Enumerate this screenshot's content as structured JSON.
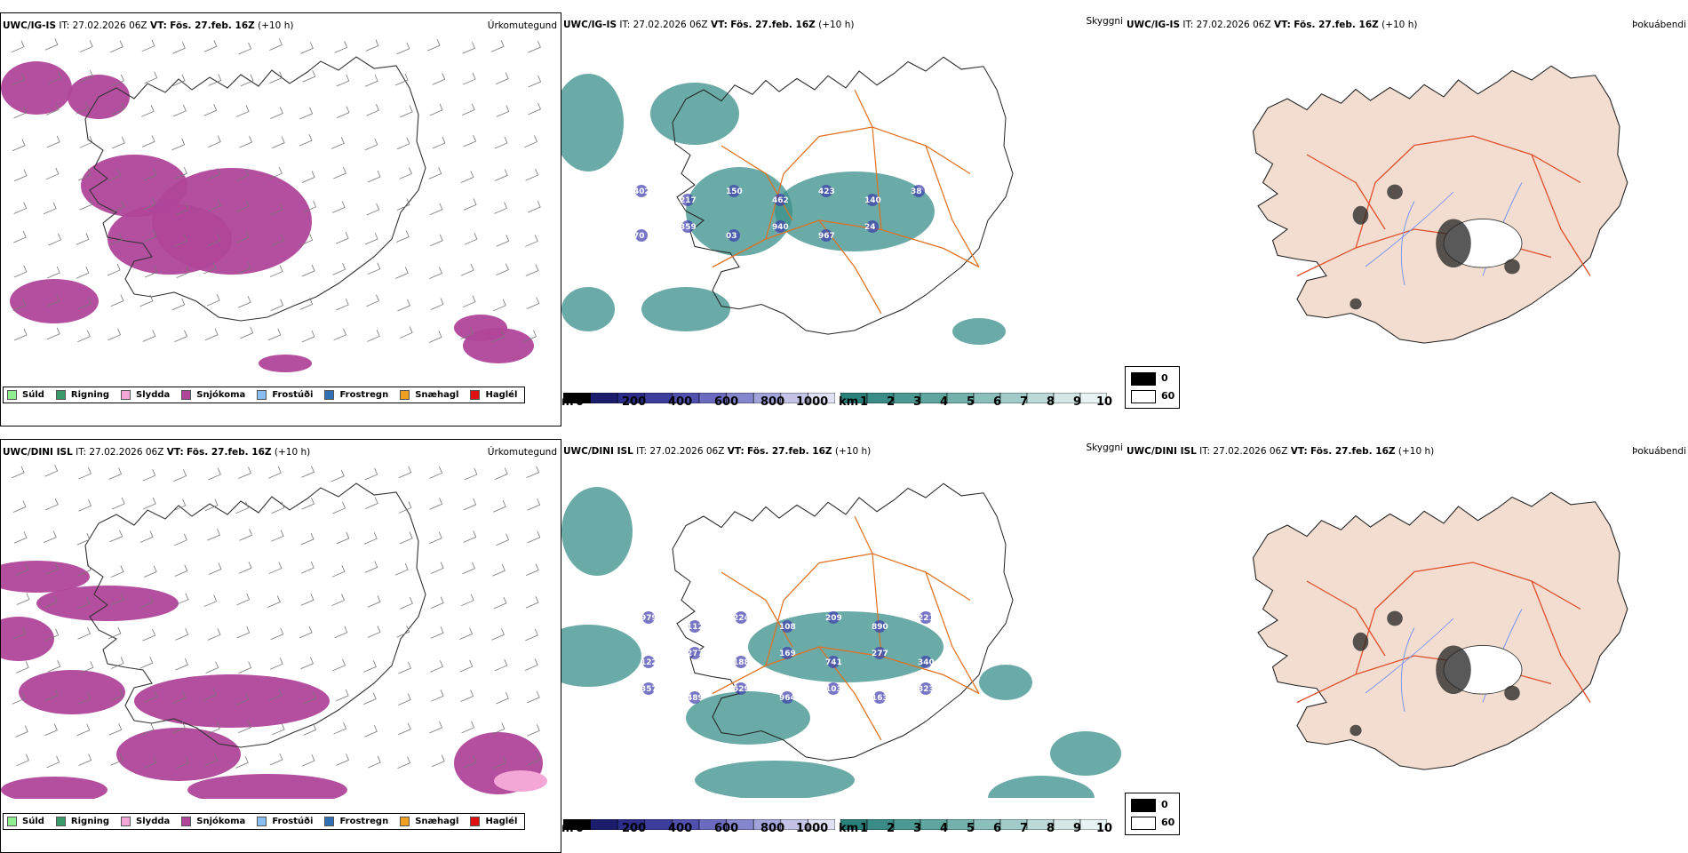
{
  "rows": [
    {
      "model_label": "UWC/IG-IS",
      "it_label": "IT:",
      "it_value": "27.02.2026 06Z",
      "vt_label": "VT:",
      "vt_value": "Fös. 27.feb. 16Z",
      "lead": "(+10 h)",
      "mountain_labels": [
        "402",
        "217",
        "150",
        "462",
        "423",
        "140",
        "38",
        "70",
        "359",
        "03",
        "940",
        "967",
        "24"
      ]
    },
    {
      "model_label": "UWC/DINI ISL",
      "it_label": "IT:",
      "it_value": "27.02.2026 06Z",
      "vt_label": "VT:",
      "vt_value": "Fös. 27.feb. 16Z",
      "lead": "(+10 h)",
      "mountain_labels": [
        "979",
        "112",
        "224",
        "108",
        "209",
        "890",
        "221",
        "122",
        "277",
        "188",
        "169",
        "741",
        "277",
        "340",
        "357",
        "489",
        "529",
        "964",
        "103",
        "163",
        "323"
      ]
    }
  ],
  "panel_titles": {
    "precip_type": "Úrkomutegund",
    "visibility": "Skyggni",
    "fog": "Þokuábendi"
  },
  "precip_legend": [
    {
      "label": "Súld",
      "color": "#90ee90"
    },
    {
      "label": "Rigning",
      "color": "#3a9a6a"
    },
    {
      "label": "Slydda",
      "color": "#f4a6d7"
    },
    {
      "label": "Snjókoma",
      "color": "#b0449a"
    },
    {
      "label": "Frostúði",
      "color": "#87bdf0"
    },
    {
      "label": "Frostregn",
      "color": "#2f6fb5"
    },
    {
      "label": "Snæhagl",
      "color": "#f0a020"
    },
    {
      "label": "Haglél",
      "color": "#e01010"
    }
  ],
  "ceiling_scale": {
    "unit": "m",
    "ticks": [
      "0",
      "200",
      "400",
      "600",
      "800",
      "1000"
    ],
    "colors": [
      "#000000",
      "#1c1c6e",
      "#2c2c8a",
      "#3d3d9e",
      "#5050b0",
      "#6a6ac0",
      "#8686cf",
      "#a4a4dc",
      "#c4c4e8",
      "#e0e0f4"
    ]
  },
  "visibility_scale": {
    "unit": "km",
    "ticks": [
      "1",
      "2",
      "3",
      "4",
      "5",
      "6",
      "7",
      "8",
      "9",
      "10"
    ],
    "colors": [
      "#2a7f7a",
      "#3a8c86",
      "#4c9893",
      "#5fa5a0",
      "#74b2ad",
      "#8abfbb",
      "#a2ccc9",
      "#bbd9d7",
      "#d4e7e6",
      "#eaf3f3"
    ]
  },
  "fog_scale": {
    "entries": [
      {
        "label": "0",
        "color": "#000000"
      },
      {
        "label": "60",
        "color": "#ffffff"
      }
    ]
  },
  "colors": {
    "snow": "#b0449a",
    "sleet": "#f4a6d7",
    "vis_fog": "#3a8f8a",
    "roads": "#e07020",
    "land_fog": "#f2ddd0",
    "rivers": "#6f8ff0",
    "ceiling": "#3d3dae"
  }
}
